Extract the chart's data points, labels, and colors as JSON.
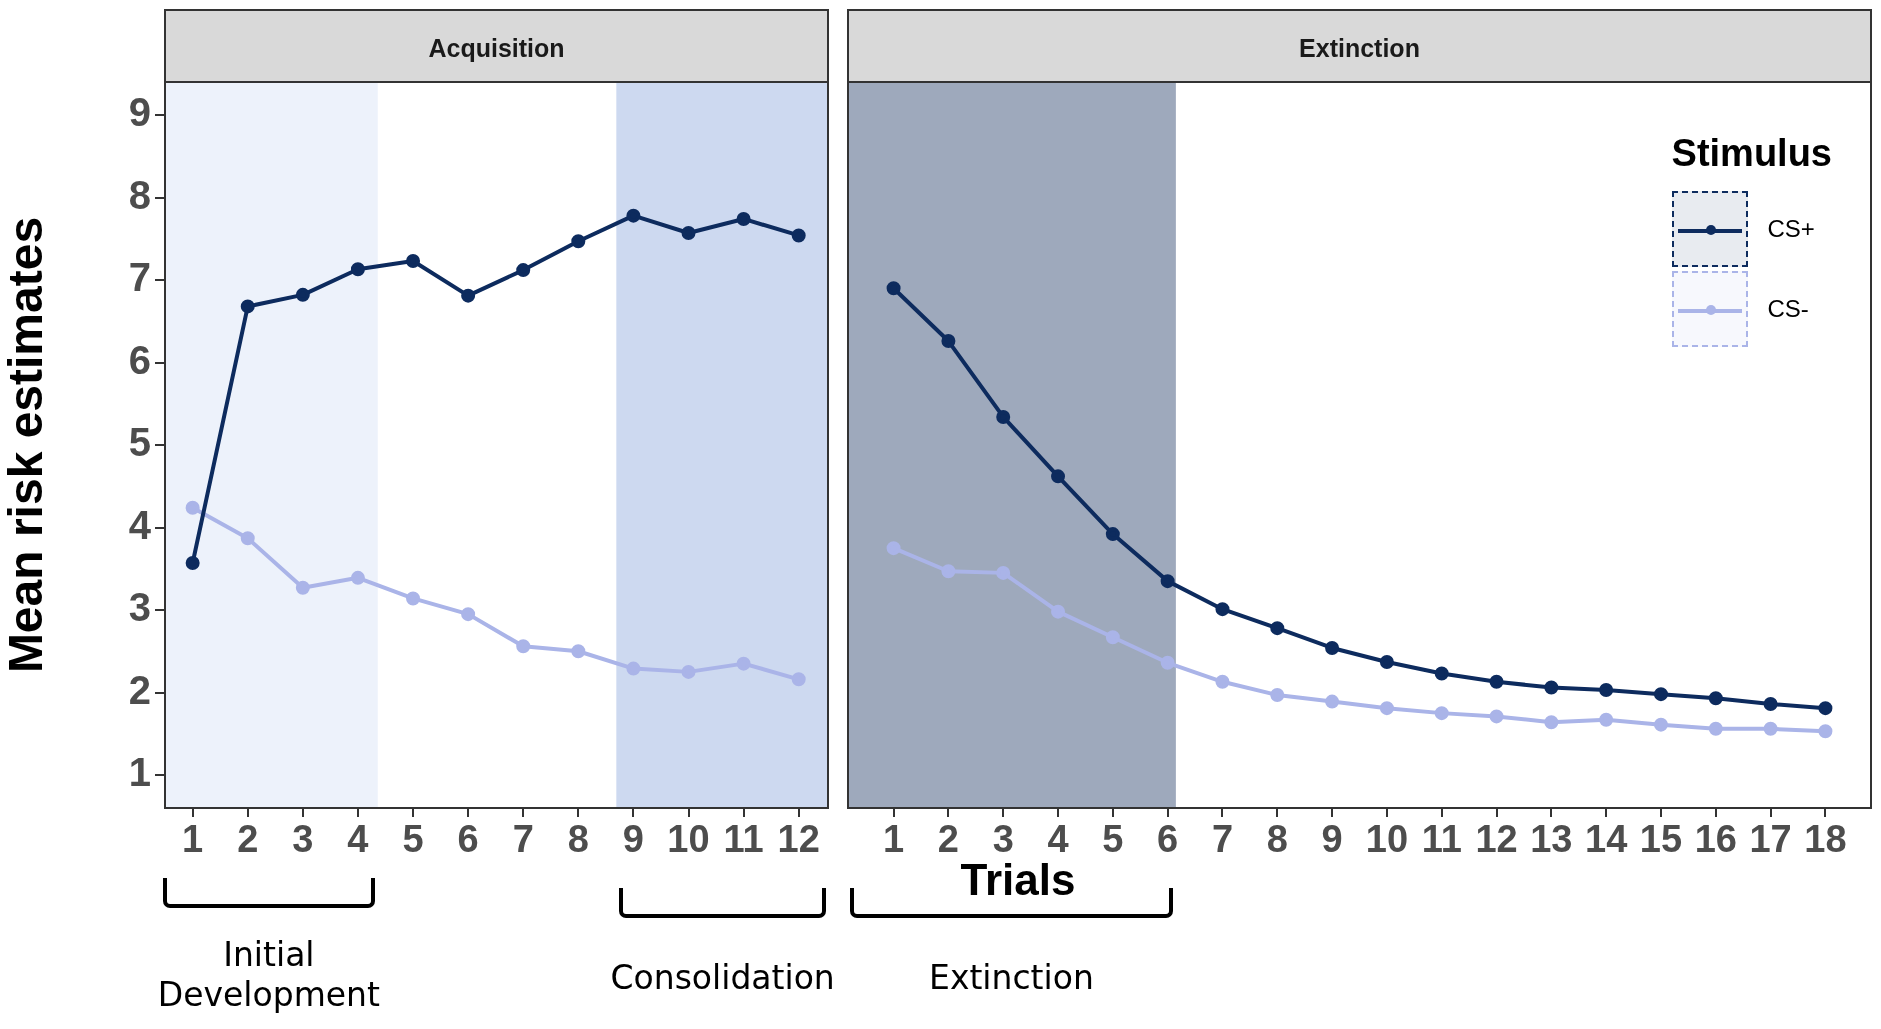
{
  "chart_data": [
    {
      "type": "line",
      "title": "Acquisition",
      "ylabel": "Mean risk estimates",
      "x": [
        1,
        2,
        3,
        4,
        5,
        6,
        7,
        8,
        9,
        10,
        11,
        12
      ],
      "xlim": [
        0.48,
        12.55
      ],
      "xticks": [
        1,
        2,
        3,
        4,
        5,
        6,
        7,
        8,
        9,
        10,
        11,
        12
      ],
      "ylim": [
        0.6,
        9.4
      ],
      "yticks": [
        1,
        2,
        3,
        4,
        5,
        6,
        7,
        8,
        9
      ],
      "marker": "circle",
      "series": [
        {
          "color": "#0d2b5e",
          "values": [
            3.57,
            6.68,
            6.82,
            7.13,
            7.23,
            6.81,
            7.12,
            7.47,
            7.78,
            7.57,
            7.74,
            7.54
          ]
        },
        {
          "color": "#aab4e8",
          "values": [
            4.24,
            3.87,
            3.27,
            3.39,
            3.14,
            2.95,
            2.56,
            2.5,
            2.29,
            2.25,
            2.35,
            2.16
          ]
        }
      ],
      "bands": [
        {
          "axis": "x",
          "from": 0.48,
          "to": 4.36,
          "color": "#edf2fb"
        },
        {
          "axis": "x",
          "from": 8.69,
          "to": 12.55,
          "color": "#cdd9f0"
        }
      ],
      "annotations": [
        "Initial Development",
        "Consolidation"
      ]
    },
    {
      "type": "line",
      "title": "Extinction",
      "xlabel": "Trials",
      "x": [
        1,
        2,
        3,
        4,
        5,
        6,
        7,
        8,
        9,
        10,
        11,
        12,
        13,
        14,
        15,
        16,
        17,
        18
      ],
      "xlim": [
        0.15,
        18.85
      ],
      "xticks": [
        1,
        2,
        3,
        4,
        5,
        6,
        7,
        8,
        9,
        10,
        11,
        12,
        13,
        14,
        15,
        16,
        17,
        18
      ],
      "ylim": [
        0.6,
        9.4
      ],
      "yticks": [
        1,
        2,
        3,
        4,
        5,
        6,
        7,
        8,
        9
      ],
      "tick_labels": "x",
      "marker": "circle",
      "legend": "top right",
      "legend_title": "Stimulus",
      "series": [
        {
          "name": "CS+",
          "color": "#0d2b5e",
          "values": [
            6.9,
            6.26,
            5.34,
            4.62,
            3.92,
            3.35,
            3.01,
            2.78,
            2.54,
            2.37,
            2.23,
            2.13,
            2.06,
            2.03,
            1.98,
            1.93,
            1.86,
            1.81
          ]
        },
        {
          "name": "CS-",
          "color": "#aab4e8",
          "values": [
            3.75,
            3.47,
            3.45,
            2.98,
            2.67,
            2.36,
            2.13,
            1.97,
            1.89,
            1.81,
            1.75,
            1.71,
            1.64,
            1.67,
            1.61,
            1.56,
            1.56,
            1.53
          ]
        }
      ],
      "bands": [
        {
          "axis": "x",
          "from": 0.15,
          "to": 6.15,
          "color": "#9ea9bc"
        }
      ],
      "annotations": [
        "Extinction"
      ]
    }
  ]
}
